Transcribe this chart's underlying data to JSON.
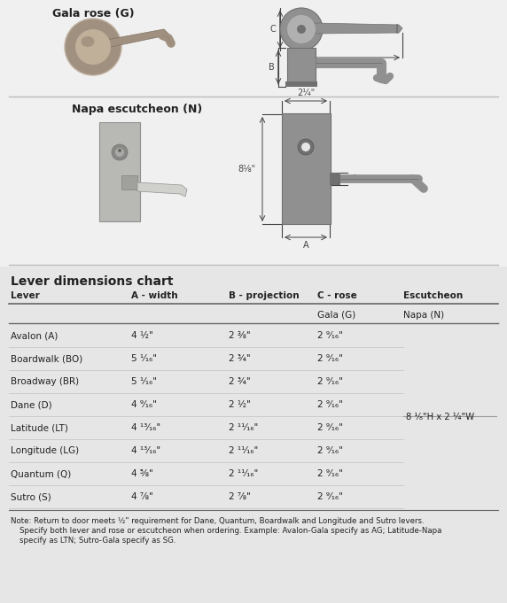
{
  "bg_color": "#e6e6e6",
  "white_panel": "#f0f0f0",
  "title_gala": "Gala rose (G)",
  "title_napa": "Napa escutcheon (N)",
  "table_title": "Lever dimensions chart",
  "col_headers": [
    "Lever",
    "A - width",
    "B - projection",
    "C - rose",
    "Escutcheon"
  ],
  "sub_col3": "Gala (G)",
  "sub_col4": "Napa (N)",
  "rows": [
    [
      "Avalon (A)",
      "4 ½\"",
      "2 ⅜\"",
      "2 ⁹⁄₁₆\""
    ],
    [
      "Boardwalk (BO)",
      "5 ¹⁄₁₆\"",
      "2 ¾\"",
      "2 ⁹⁄₁₆\""
    ],
    [
      "Broadway (BR)",
      "5 ¹⁄₁₆\"",
      "2 ¾\"",
      "2 ⁹⁄₁₆\""
    ],
    [
      "Dane (D)",
      "4 ⁹⁄₁₆\"",
      "2 ½\"",
      "2 ⁹⁄₁₆\""
    ],
    [
      "Latitude (LT)",
      "4 ¹³⁄₁₆\"",
      "2 ¹¹⁄₁₆\"",
      "2 ⁹⁄₁₆\""
    ],
    [
      "Longitude (LG)",
      "4 ¹³⁄₁₆\"",
      "2 ¹¹⁄₁₆\"",
      "2 ⁹⁄₁₆\""
    ],
    [
      "Quantum (Q)",
      "4 ⅝\"",
      "2 ¹¹⁄₁₆\"",
      "2 ⁹⁄₁₆\""
    ],
    [
      "Sutro (S)",
      "4 ⅞\"",
      "2 ⅞\"",
      "2 ⁹⁄₁₆\""
    ]
  ],
  "escutcheon_label": "8 ¹⁄₈\"H x 2 ¼\"W",
  "note1": "Note: Return to door meets ½\" requirement for Dane, Quantum, Boardwalk and Longitude and Sutro levers.",
  "note2": "Specify both lever and rose or escutcheon when ordering. Example: Avalon-Gala specify as AG; Latitude-Napa",
  "note3": "specify as LTN; Sutro-Gala specify as SG.",
  "dim_color": "#444444",
  "text_color": "#222222",
  "hardware_color": "#909090",
  "hardware_dark": "#707070",
  "hardware_light": "#b0b0b0",
  "gala_photo_color": "#a09080",
  "gala_photo_light": "#c0b0a0",
  "napa_photo_color": "#b8b8b4",
  "napa_photo_light": "#d0d0cc",
  "sep_color": "#bbbbbb",
  "line_dark": "#666666"
}
